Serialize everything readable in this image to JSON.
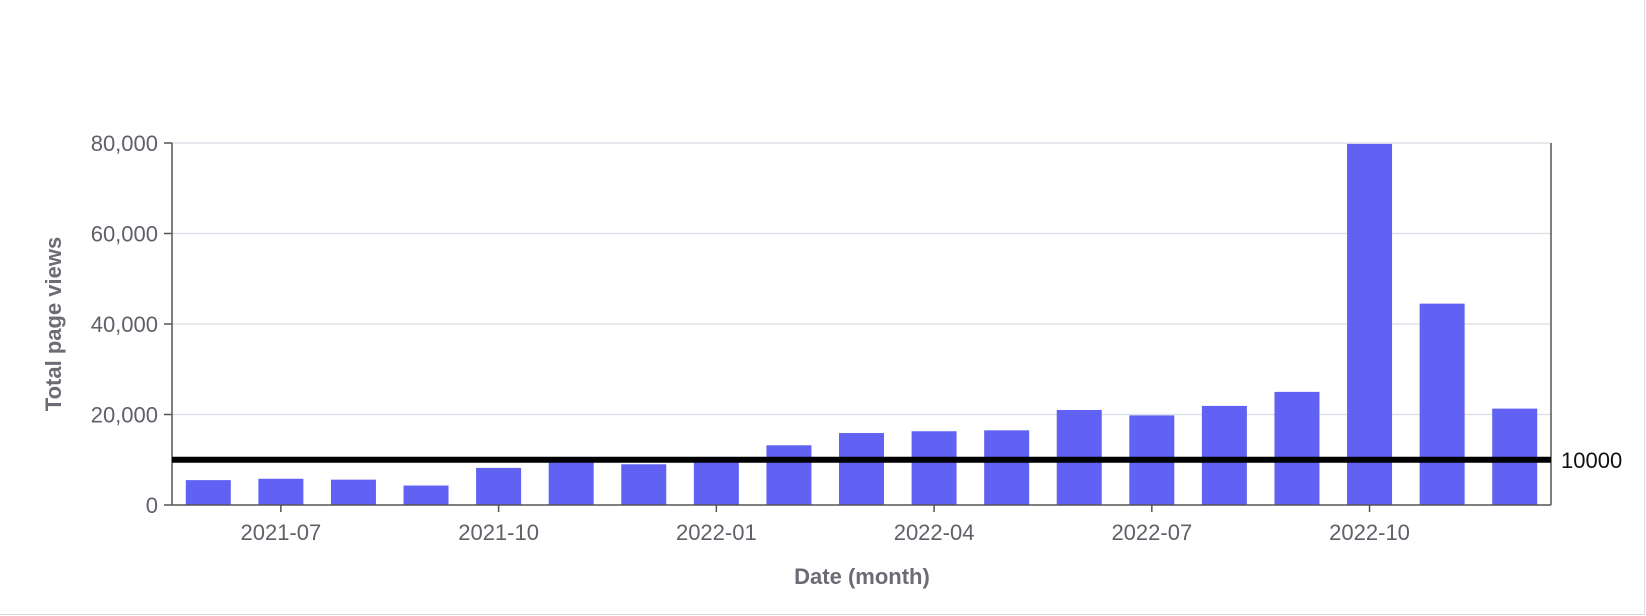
{
  "chart_data": {
    "type": "bar",
    "xlabel": "Date (month)",
    "ylabel": "Total page views",
    "ylim": [
      0,
      80000
    ],
    "y_ticks": [
      0,
      20000,
      40000,
      60000,
      80000
    ],
    "y_tick_labels": [
      "0",
      "20,000",
      "40,000",
      "60,000",
      "80,000"
    ],
    "x_tick_labels": [
      "2021-07",
      "2021-10",
      "2022-01",
      "2022-04",
      "2022-07",
      "2022-10"
    ],
    "x_tick_categories": [
      "2021-07",
      "2021-10",
      "2022-01",
      "2022-04",
      "2022-07",
      "2022-10"
    ],
    "categories": [
      "2021-06",
      "2021-07",
      "2021-08",
      "2021-09",
      "2021-10",
      "2021-11",
      "2021-12",
      "2022-01",
      "2022-02",
      "2022-03",
      "2022-04",
      "2022-05",
      "2022-06",
      "2022-07",
      "2022-08",
      "2022-09",
      "2022-10",
      "2022-11",
      "2022-12"
    ],
    "values": [
      5500,
      5800,
      5600,
      4300,
      8200,
      9500,
      9000,
      10200,
      13200,
      15900,
      16300,
      16500,
      21000,
      19800,
      21900,
      25000,
      79800,
      44500,
      21300
    ],
    "reference_line": {
      "value": 10000,
      "label": "10000"
    },
    "grid": "horizontal",
    "bar_color": "#6161f3"
  }
}
